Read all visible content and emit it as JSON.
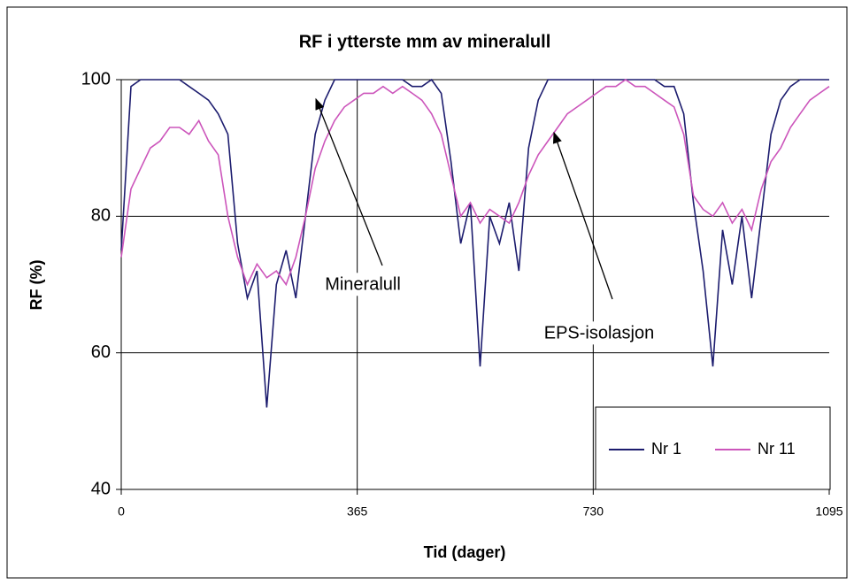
{
  "chart_data": {
    "type": "line",
    "title": "RF i ytterste mm av mineralull",
    "xlabel": "Tid (dager)",
    "ylabel": "RF (%)",
    "x": [
      0,
      15,
      30,
      45,
      60,
      75,
      90,
      105,
      120,
      135,
      150,
      165,
      180,
      195,
      210,
      225,
      240,
      255,
      270,
      285,
      300,
      315,
      330,
      345,
      360,
      375,
      390,
      405,
      420,
      435,
      450,
      465,
      480,
      495,
      510,
      525,
      540,
      555,
      570,
      585,
      600,
      615,
      630,
      645,
      660,
      675,
      690,
      705,
      720,
      735,
      750,
      765,
      780,
      795,
      810,
      825,
      840,
      855,
      870,
      885,
      900,
      915,
      930,
      945,
      960,
      975,
      990,
      1005,
      1020,
      1035,
      1050,
      1065,
      1080,
      1095
    ],
    "series": [
      {
        "name": "Nr 1",
        "color": "#1c1c6e",
        "values": [
          75,
          99,
          100,
          100,
          100,
          100,
          100,
          99,
          98,
          97,
          95,
          92,
          76,
          68,
          72,
          52,
          70,
          75,
          68,
          80,
          92,
          97,
          100,
          100,
          100,
          100,
          100,
          100,
          100,
          100,
          99,
          99,
          100,
          98,
          88,
          76,
          82,
          58,
          80,
          76,
          82,
          72,
          90,
          97,
          100,
          100,
          100,
          100,
          100,
          100,
          100,
          100,
          100,
          100,
          100,
          100,
          99,
          99,
          95,
          82,
          72,
          58,
          78,
          70,
          80,
          68,
          80,
          92,
          97,
          99,
          100,
          100,
          100,
          100
        ]
      },
      {
        "name": "Nr 11",
        "color": "#cc55bb",
        "values": [
          74,
          84,
          87,
          90,
          91,
          93,
          93,
          92,
          94,
          91,
          89,
          80,
          74,
          70,
          73,
          71,
          72,
          70,
          74,
          80,
          87,
          91,
          94,
          96,
          97,
          98,
          98,
          99,
          98,
          99,
          98,
          97,
          95,
          92,
          86,
          80,
          82,
          79,
          81,
          80,
          79,
          82,
          86,
          89,
          91,
          93,
          95,
          96,
          97,
          98,
          99,
          99,
          100,
          99,
          99,
          98,
          97,
          96,
          92,
          83,
          81,
          80,
          82,
          79,
          81,
          78,
          84,
          88,
          90,
          93,
          95,
          97,
          98,
          99
        ]
      }
    ],
    "annotations": [
      {
        "text": "Mineralull"
      },
      {
        "text": "EPS-isolasjon"
      }
    ],
    "xlim": [
      0,
      1095
    ],
    "xticks": [
      0,
      365,
      730,
      1095
    ],
    "ylim": [
      40,
      100
    ],
    "yticks": [
      40,
      60,
      80,
      100
    ],
    "grid": true,
    "legend": "lower right"
  }
}
